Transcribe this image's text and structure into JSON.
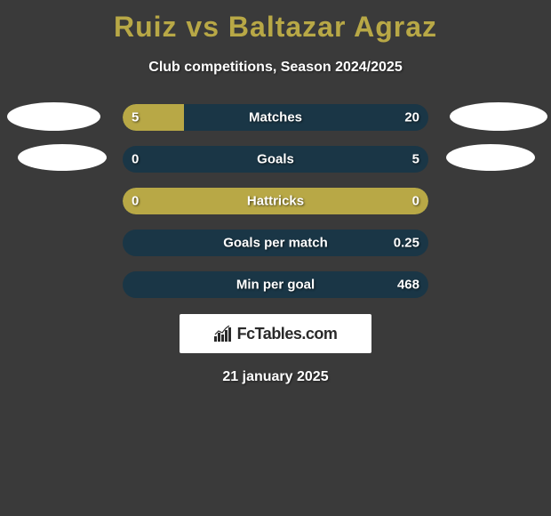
{
  "title": "Ruiz vs Baltazar Agraz",
  "subtitle": "Club competitions, Season 2024/2025",
  "date": "21 january 2025",
  "logo_text": "FcTables.com",
  "colors": {
    "background": "#3a3a3a",
    "accent": "#b8a846",
    "bar_bg": "#1a3646",
    "text": "#ffffff",
    "ellipse": "#ffffff"
  },
  "rows": [
    {
      "label": "Matches",
      "left": "5",
      "right": "20",
      "left_pct": 20,
      "show_left_ellipse": true,
      "show_right_ellipse": true,
      "ellipse_left_class": "ellipse-left-1",
      "ellipse_right_class": "ellipse-right-1"
    },
    {
      "label": "Goals",
      "left": "0",
      "right": "5",
      "left_pct": 0,
      "show_left_ellipse": true,
      "show_right_ellipse": true,
      "ellipse_left_class": "ellipse-left-2",
      "ellipse_right_class": "ellipse-right-2"
    },
    {
      "label": "Hattricks",
      "left": "0",
      "right": "0",
      "left_pct": 100,
      "show_left_ellipse": false,
      "show_right_ellipse": false
    },
    {
      "label": "Goals per match",
      "left": "",
      "right": "0.25",
      "left_pct": 0,
      "show_left_ellipse": false,
      "show_right_ellipse": false
    },
    {
      "label": "Min per goal",
      "left": "",
      "right": "468",
      "left_pct": 0,
      "show_left_ellipse": false,
      "show_right_ellipse": false
    }
  ]
}
